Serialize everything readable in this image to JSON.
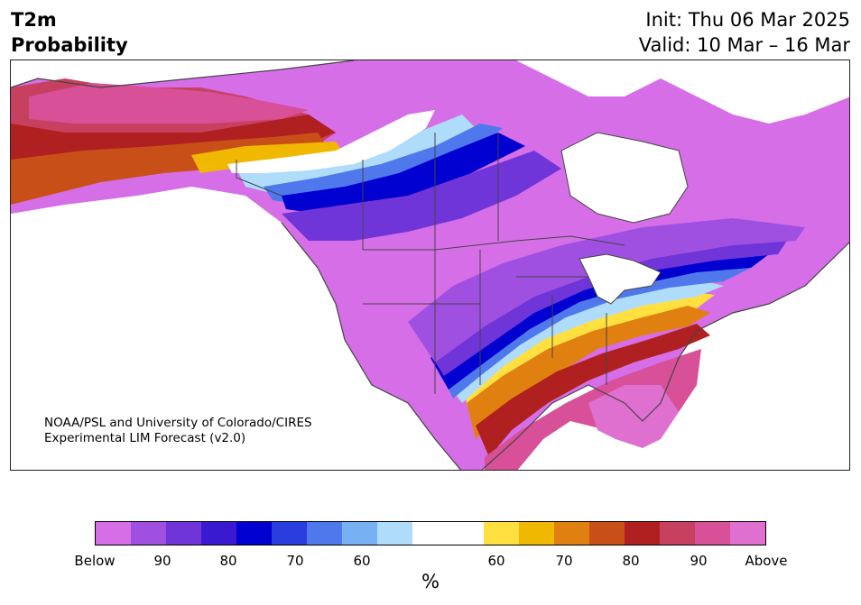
{
  "header": {
    "variable": "T2m",
    "subtitle": "Probability",
    "init": "Init: Thu 06 Mar 2025",
    "valid": "Valid: 10 Mar – 16 Mar"
  },
  "credit": {
    "line1": "NOAA/PSL and University of Colorado/CIRES",
    "line2": "Experimental LIM Forecast (v2.0)"
  },
  "legend": {
    "unit": "%",
    "colors": [
      "#d66ee8",
      "#a050e0",
      "#7035d8",
      "#3a1ad0",
      "#0000d0",
      "#2a3ee0",
      "#4e78ec",
      "#78b0f4",
      "#b0dcfc",
      "#ffffff",
      "#ffffff",
      "#ffe040",
      "#f0b800",
      "#e08010",
      "#c85018",
      "#b02020",
      "#c84060",
      "#d85098",
      "#e070d0"
    ],
    "labels": [
      "Below",
      "90",
      "80",
      "70",
      "60",
      "60",
      "70",
      "80",
      "90",
      "Above"
    ]
  },
  "map": {
    "region": "North America",
    "palette": {
      "below_strong": "#d66ee8",
      "below_mid": "#a050e0",
      "below_low": "#0000d0",
      "near_normal": "#ffffff",
      "above_low": "#ffe040",
      "above_mid": "#c85018",
      "above_strong": "#d85098",
      "border": "#444444"
    }
  }
}
